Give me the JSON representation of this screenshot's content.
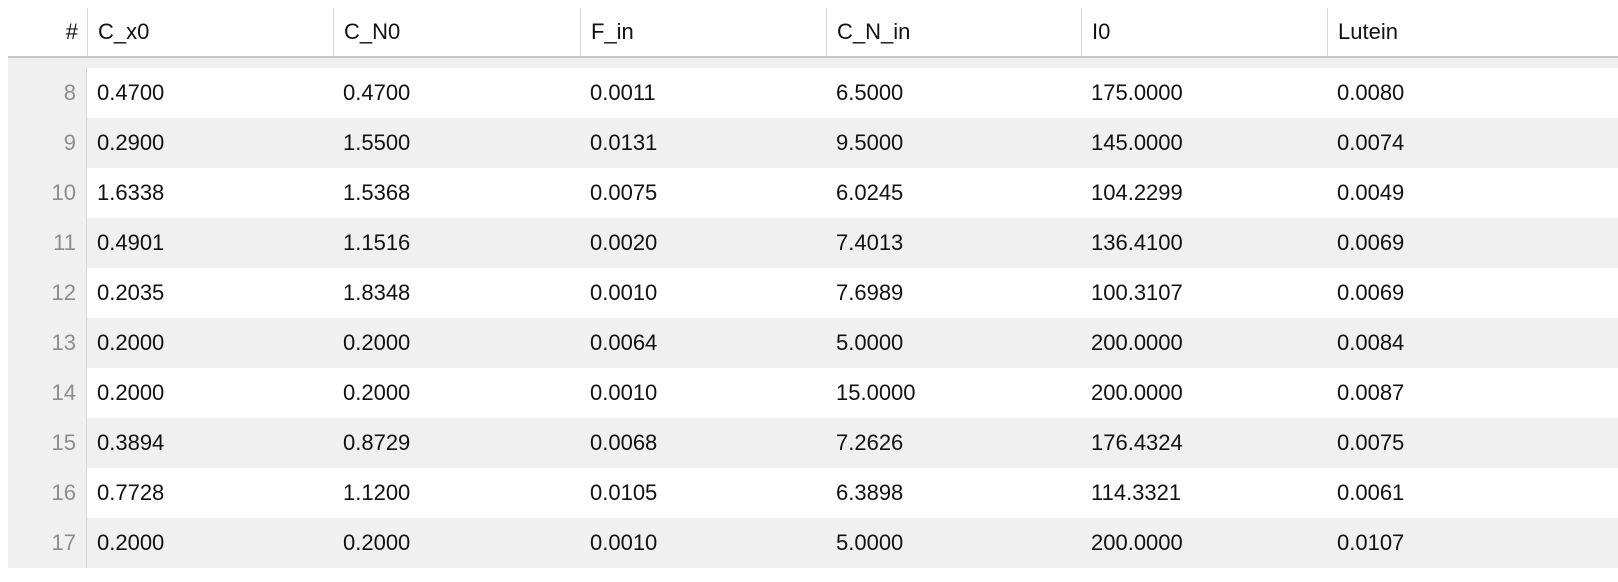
{
  "table": {
    "index_header": "#",
    "columns": [
      "C_x0",
      "C_N0",
      "F_in",
      "C_N_in",
      "I0",
      "Lutein"
    ],
    "rows": [
      {
        "index": "8",
        "values": [
          "0.4700",
          "0.4700",
          "0.0011",
          "6.5000",
          "175.0000",
          "0.0080"
        ]
      },
      {
        "index": "9",
        "values": [
          "0.2900",
          "1.5500",
          "0.0131",
          "9.5000",
          "145.0000",
          "0.0074"
        ]
      },
      {
        "index": "10",
        "values": [
          "1.6338",
          "1.5368",
          "0.0075",
          "6.0245",
          "104.2299",
          "0.0049"
        ]
      },
      {
        "index": "11",
        "values": [
          "0.4901",
          "1.1516",
          "0.0020",
          "7.4013",
          "136.4100",
          "0.0069"
        ]
      },
      {
        "index": "12",
        "values": [
          "0.2035",
          "1.8348",
          "0.0010",
          "7.6989",
          "100.3107",
          "0.0069"
        ]
      },
      {
        "index": "13",
        "values": [
          "0.2000",
          "0.2000",
          "0.0064",
          "5.0000",
          "200.0000",
          "0.0084"
        ]
      },
      {
        "index": "14",
        "values": [
          "0.2000",
          "0.2000",
          "0.0010",
          "15.0000",
          "200.0000",
          "0.0087"
        ]
      },
      {
        "index": "15",
        "values": [
          "0.3894",
          "0.8729",
          "0.0068",
          "7.2626",
          "176.4324",
          "0.0075"
        ]
      },
      {
        "index": "16",
        "values": [
          "0.7728",
          "1.1200",
          "0.0105",
          "6.3898",
          "114.3321",
          "0.0061"
        ]
      },
      {
        "index": "17",
        "values": [
          "0.2000",
          "0.2000",
          "0.0010",
          "5.0000",
          "200.0000",
          "0.0107"
        ]
      }
    ]
  }
}
